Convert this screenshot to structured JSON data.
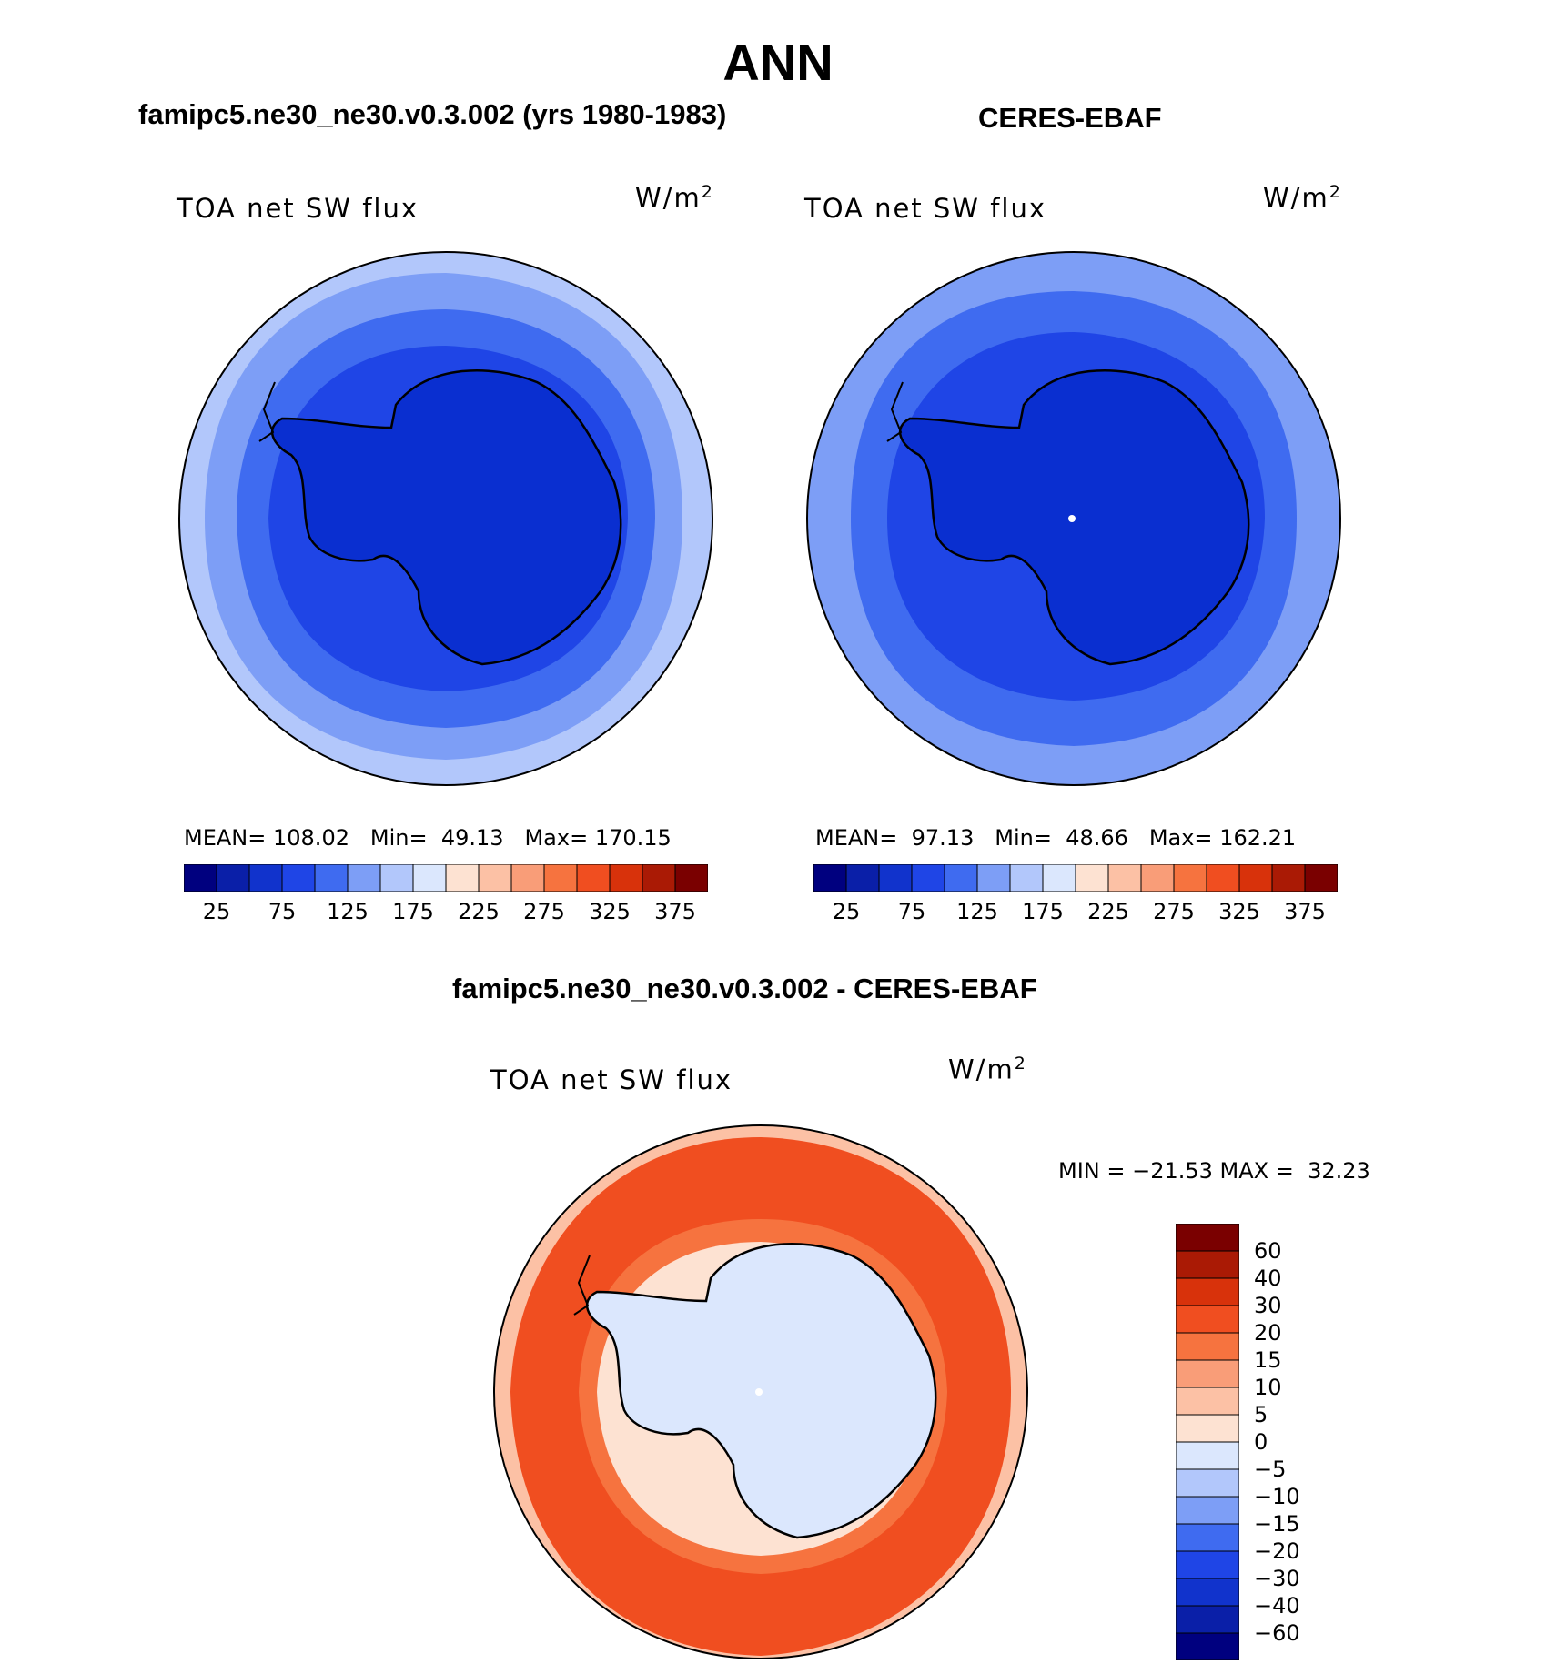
{
  "title": "ANN",
  "panels": {
    "model": {
      "heading": "famipc5.ne30_ne30.v0.3.002 (yrs 1980-1983)",
      "variable": "TOA net SW flux",
      "units_base": "W/m",
      "units_exp": "2",
      "mean_label": "MEAN=",
      "mean": "108.02",
      "min_label": "Min=",
      "min": "49.13",
      "max_label": "Max=",
      "max": "170.15"
    },
    "obs": {
      "heading": "CERES-EBAF",
      "variable": "TOA net SW flux",
      "units_base": "W/m",
      "units_exp": "2",
      "mean_label": "MEAN=",
      "mean": "97.13",
      "min_label": "Min=",
      "min": "48.66",
      "max_label": "Max=",
      "max": "162.21"
    },
    "diff": {
      "heading": "famipc5.ne30_ne30.v0.3.002 - CERES-EBAF",
      "variable": "TOA net SW flux",
      "units_base": "W/m",
      "units_exp": "2",
      "minmax": "MIN = −21.53 MAX =  32.23"
    }
  },
  "colorbar_abs": {
    "tick_labels": [
      "25",
      "75",
      "125",
      "175",
      "225",
      "275",
      "325",
      "375"
    ],
    "colors": [
      "#00007f",
      "#0a1fa8",
      "#1133cc",
      "#1f45e6",
      "#3f6bf0",
      "#7d9ef6",
      "#b2c7fb",
      "#dbe7fd",
      "#fde2d2",
      "#fcc1a5",
      "#f99d78",
      "#f6733f",
      "#f04e20",
      "#d8320b",
      "#aa1a05",
      "#7a0000"
    ]
  },
  "colorbar_diff": {
    "tick_labels": [
      "60",
      "40",
      "30",
      "20",
      "15",
      "10",
      "5",
      "0",
      "−5",
      "−10",
      "−15",
      "−20",
      "−30",
      "−40",
      "−60"
    ],
    "colors": [
      "#7a0000",
      "#aa1a05",
      "#d8320b",
      "#f04e20",
      "#f6733f",
      "#f99d78",
      "#fcc1a5",
      "#fde2d2",
      "#dbe7fd",
      "#b2c7fb",
      "#7d9ef6",
      "#3f6bf0",
      "#1f45e6",
      "#1133cc",
      "#0a1fa8",
      "#00007f"
    ]
  },
  "map_fill_colors": {
    "abs_outer": "#b2c7fb",
    "abs_ring2": "#7d9ef6",
    "abs_ring3": "#3f6bf0",
    "abs_ring4": "#1f45e6",
    "abs_land": "#0a2fd0",
    "diff_ocean_light": "#fcc1a5",
    "diff_ocean": "#f04e20",
    "diff_mid": "#f6733f",
    "diff_coast": "#fde2d2",
    "diff_land": "#dbe7fd"
  }
}
